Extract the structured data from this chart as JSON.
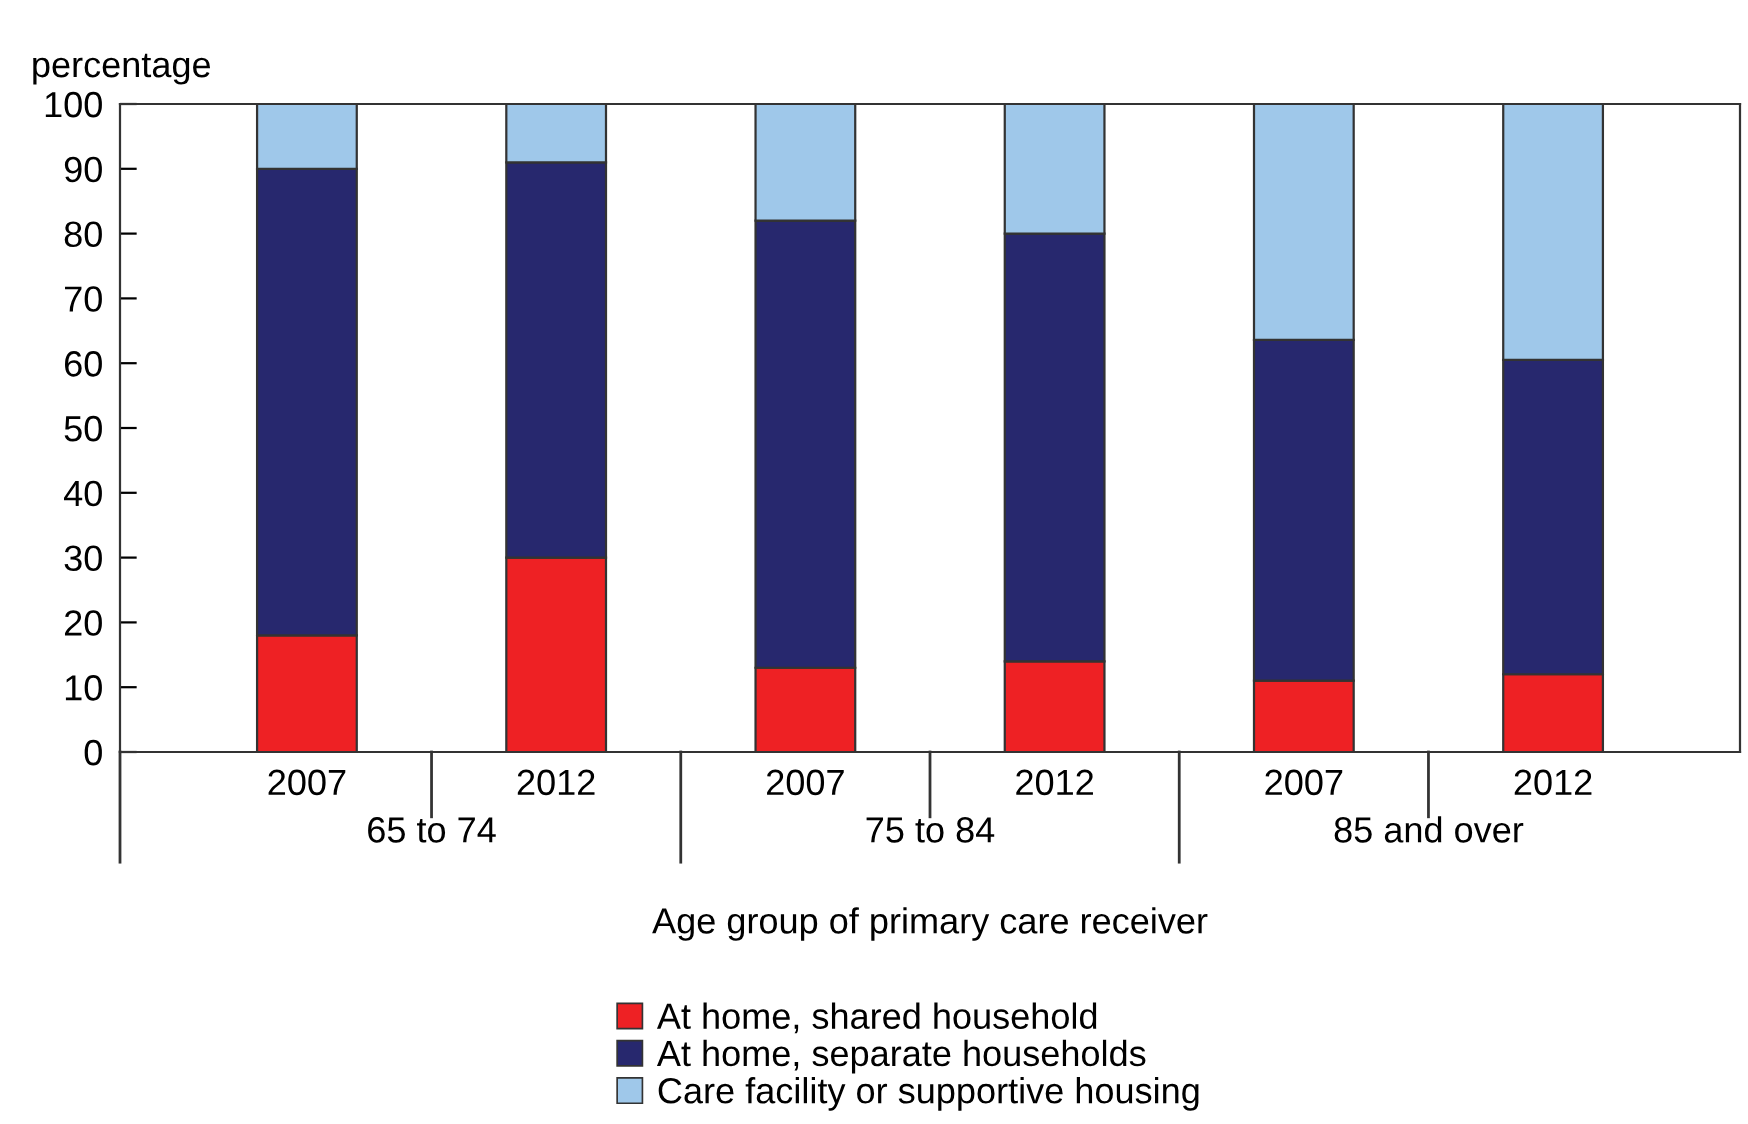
{
  "chart_data": {
    "type": "bar",
    "stacked": true,
    "ylabel": "percentage",
    "xlabel": "Age group of primary care receiver",
    "categories": [
      "2007",
      "2012",
      "2007",
      "2012",
      "2007",
      "2012"
    ],
    "annotations": [
      "65 to 74",
      "75 to 84",
      "85 and over"
    ],
    "series": [
      {
        "name": "At home, shared household",
        "color": "#ee2124",
        "values": [
          18,
          30,
          13,
          14,
          11,
          12
        ]
      },
      {
        "name": "At home, separate households",
        "color": "#27286e",
        "values": [
          72,
          61,
          69,
          66,
          52.6,
          48.5
        ]
      },
      {
        "name": "Care facility or supportive housing",
        "color": "#9fc8ea",
        "values": [
          10,
          9,
          18,
          20,
          36.4,
          39.5
        ]
      }
    ],
    "ylim": [
      0,
      100
    ],
    "yticks": [
      0,
      10,
      20,
      30,
      40,
      50,
      60,
      70,
      80,
      90,
      100
    ],
    "grid": false,
    "legend": "bottom"
  }
}
